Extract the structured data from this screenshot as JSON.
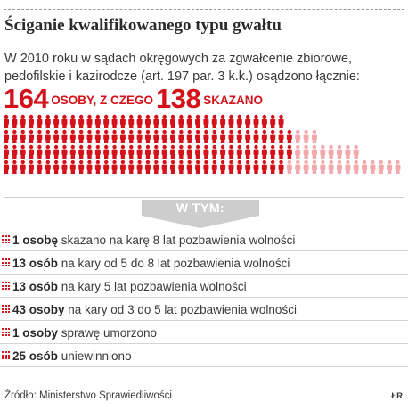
{
  "title": "Ściganie kwalifikowanego typu gwałtu",
  "intro": "W 2010 roku w sądach okręgowych za zgwałcenie zbiorowe, pedofilskie i kazirodcze (art. 197 par. 3 k.k.) osądzono łącznie:",
  "headline": {
    "total": "164",
    "total_label": "OSOBY, Z CZEGO",
    "convicted": "138",
    "convicted_label": "SKAZANO"
  },
  "colors": {
    "accent": "#d4121a",
    "accent_light": "#f2a9ab",
    "text": "#3a3a3a",
    "banner": "#cdcdcd"
  },
  "chart_data": {
    "type": "pictogram",
    "icon": "person-icon",
    "series": [
      {
        "name": "SKAZANO",
        "values": [
          138
        ]
      },
      {
        "name": "",
        "values": [
          26
        ]
      }
    ],
    "total": 164
  },
  "banner": "W TYM:",
  "rows": [
    {
      "bold": "1 osobę",
      "text": " skazano na karę 8 lat pozbawienia wolności"
    },
    {
      "bold": "13 osób",
      "text": " na kary od 5 do 8 lat pozbawienia wolności"
    },
    {
      "bold": "13 osób",
      "text": " na kary 5 lat pozbawienia wolności"
    },
    {
      "bold": "43 osoby",
      "text": " na kary od 3 do 5 lat pozbawienia wolności"
    },
    {
      "bold": "1 osoby",
      "text": " sprawę umorzono"
    },
    {
      "bold": "25 osób",
      "text": " uniewinniono"
    }
  ],
  "source": "Źródło: Ministerstwo Sprawiedliwości",
  "credit": "ŁR"
}
